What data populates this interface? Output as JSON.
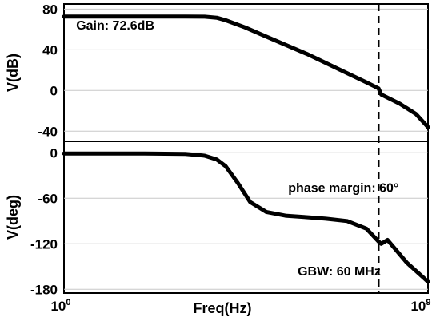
{
  "chart_data": {
    "type": "line",
    "xlabel": "Freq(Hz)",
    "x_scale": "log",
    "xlim": [
      1,
      1000000000
    ],
    "x_ticks": [
      {
        "value": 1,
        "base": "10",
        "exp": "0"
      },
      {
        "value": 1000000000,
        "base": "10",
        "exp": "9"
      }
    ],
    "panels": [
      {
        "id": "gain",
        "ylabel": "V(dB)",
        "ylim": [
          -50,
          85
        ],
        "y_ticks": [
          80,
          40,
          0,
          -40
        ],
        "y_tick_labels": [
          "80",
          "40",
          "0",
          "-40"
        ],
        "grid": true,
        "series": [
          {
            "x": [
              1,
              10,
              100,
              1000,
              3000,
              6000,
              10000,
              30000,
              100000,
              1000000,
              10000000,
              30000000,
              60000000,
              70000000,
              100000000,
              200000000,
              500000000,
              1000000000
            ],
            "y": [
              72.6,
              72.6,
              72.6,
              72.6,
              72.5,
              71.5,
              69,
              62,
              53,
              36,
              17,
              8,
              2,
              -4,
              -7,
              -13,
              -23,
              -36
            ]
          }
        ],
        "annotations": [
          {
            "text": "Gain: 72.6dB",
            "x": 2,
            "y": 60
          }
        ]
      },
      {
        "id": "phase",
        "ylabel": "V(deg)",
        "ylim": [
          -185,
          15
        ],
        "y_ticks": [
          0,
          -60,
          -120,
          -180
        ],
        "y_tick_labels": [
          "0",
          "-60",
          "-120",
          "-180"
        ],
        "grid": true,
        "series": [
          {
            "x": [
              1,
              10,
              100,
              1000,
              3000,
              6000,
              10000,
              20000,
              40000,
              100000,
              300000,
              1000000,
              3000000,
              10000000,
              30000000,
              60000000,
              70000000,
              100000000,
              300000000,
              1000000000
            ],
            "y": [
              -1,
              -1,
              -1,
              -1.5,
              -4,
              -9,
              -18,
              -40,
              -65,
              -78,
              -83,
              -85,
              -87,
              -90,
              -100,
              -117,
              -120,
              -115,
              -145,
              -170
            ]
          }
        ],
        "annotations": [
          {
            "text": "phase margin: 60°",
            "x": 350000,
            "y": -52
          },
          {
            "text": "GBW: 60 MHz",
            "x": 600000,
            "y": -162
          }
        ]
      }
    ],
    "vlines": [
      {
        "x": 60000000,
        "style": "dashed"
      }
    ]
  }
}
